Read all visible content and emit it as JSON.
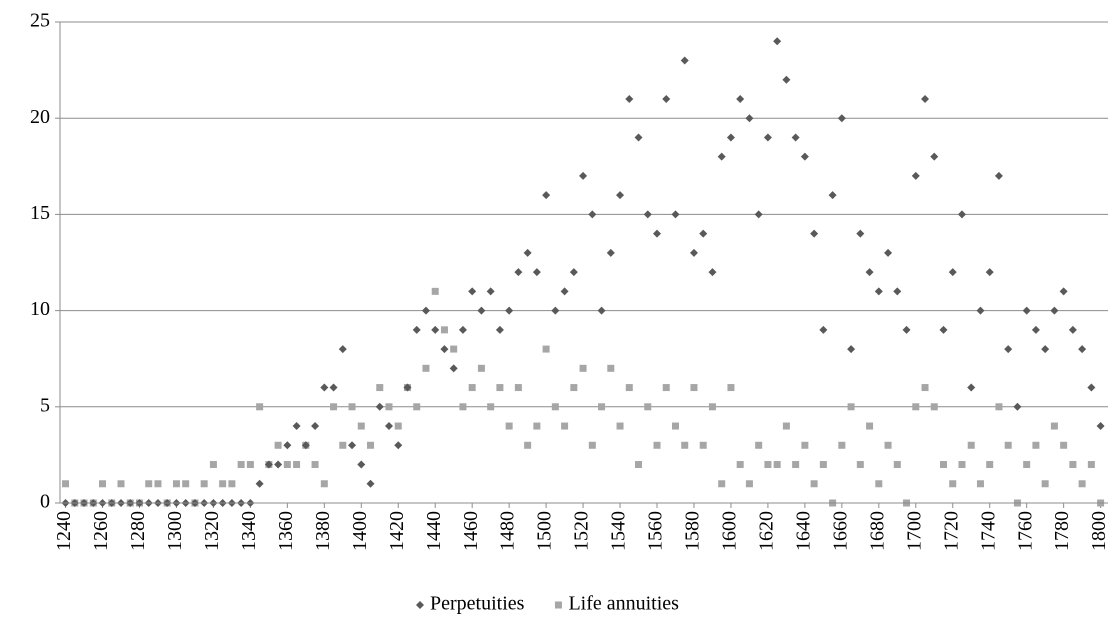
{
  "chart_data": {
    "type": "scatter",
    "x": [
      1240,
      1245,
      1250,
      1255,
      1260,
      1265,
      1270,
      1275,
      1280,
      1285,
      1290,
      1295,
      1300,
      1305,
      1310,
      1315,
      1320,
      1325,
      1330,
      1335,
      1340,
      1345,
      1350,
      1355,
      1360,
      1365,
      1370,
      1375,
      1380,
      1385,
      1390,
      1395,
      1400,
      1405,
      1410,
      1415,
      1420,
      1425,
      1430,
      1435,
      1440,
      1445,
      1450,
      1455,
      1460,
      1465,
      1470,
      1475,
      1480,
      1485,
      1490,
      1495,
      1500,
      1505,
      1510,
      1515,
      1520,
      1525,
      1530,
      1535,
      1540,
      1545,
      1550,
      1555,
      1560,
      1565,
      1570,
      1575,
      1580,
      1585,
      1590,
      1595,
      1600,
      1605,
      1610,
      1615,
      1620,
      1625,
      1630,
      1635,
      1640,
      1645,
      1650,
      1655,
      1660,
      1665,
      1670,
      1675,
      1680,
      1685,
      1690,
      1695,
      1700,
      1705,
      1710,
      1715,
      1720,
      1725,
      1730,
      1735,
      1740,
      1745,
      1750,
      1755,
      1760,
      1765,
      1770,
      1775,
      1780,
      1785,
      1790,
      1795,
      1800
    ],
    "series": [
      {
        "name": "Perpetuities",
        "color": "#595959",
        "marker": "diamond",
        "values": [
          0,
          0,
          0,
          0,
          0,
          0,
          0,
          0,
          0,
          0,
          0,
          0,
          0,
          0,
          0,
          0,
          0,
          0,
          0,
          0,
          0,
          1,
          2,
          2,
          3,
          4,
          3,
          4,
          6,
          6,
          8,
          3,
          2,
          1,
          5,
          4,
          3,
          6,
          9,
          10,
          9,
          8,
          7,
          9,
          11,
          10,
          11,
          9,
          10,
          12,
          13,
          12,
          16,
          10,
          11,
          12,
          17,
          15,
          10,
          13,
          16,
          21,
          19,
          15,
          14,
          21,
          15,
          23,
          13,
          14,
          12,
          18,
          19,
          21,
          20,
          15,
          19,
          24,
          22,
          19,
          18,
          14,
          9,
          16,
          20,
          8,
          14,
          12,
          11,
          13,
          11,
          9,
          17,
          21,
          18,
          9,
          12,
          15,
          6,
          10,
          12,
          17,
          8,
          5,
          10,
          9,
          8,
          10,
          11,
          9,
          8,
          6,
          4
        ]
      },
      {
        "name": "Life annuities",
        "color": "#a6a6a6",
        "marker": "square",
        "values": [
          1,
          0,
          0,
          0,
          1,
          0,
          1,
          0,
          0,
          1,
          1,
          0,
          1,
          1,
          0,
          1,
          2,
          1,
          1,
          2,
          2,
          5,
          2,
          3,
          2,
          2,
          3,
          2,
          1,
          5,
          3,
          5,
          4,
          3,
          6,
          5,
          4,
          6,
          5,
          7,
          11,
          9,
          8,
          5,
          6,
          7,
          5,
          6,
          4,
          6,
          3,
          4,
          8,
          5,
          4,
          6,
          7,
          3,
          5,
          7,
          4,
          6,
          2,
          5,
          3,
          6,
          4,
          3,
          6,
          3,
          5,
          1,
          6,
          2,
          1,
          3,
          2,
          2,
          4,
          2,
          3,
          1,
          2,
          0,
          3,
          5,
          2,
          4,
          1,
          3,
          2,
          0,
          5,
          6,
          5,
          2,
          1,
          2,
          3,
          1,
          2,
          5,
          3,
          0,
          2,
          3,
          1,
          4,
          3,
          2,
          1,
          2,
          0
        ]
      }
    ],
    "xlim": [
      1237,
      1804
    ],
    "xticks": [
      1240,
      1260,
      1280,
      1300,
      1320,
      1340,
      1360,
      1380,
      1400,
      1420,
      1440,
      1460,
      1480,
      1500,
      1520,
      1540,
      1560,
      1580,
      1600,
      1620,
      1640,
      1660,
      1680,
      1700,
      1720,
      1740,
      1760,
      1780,
      1800
    ],
    "ylim": [
      0,
      25
    ],
    "yticks": [
      0,
      5,
      10,
      15,
      20,
      25
    ],
    "grid": true,
    "legend": "bottom"
  }
}
